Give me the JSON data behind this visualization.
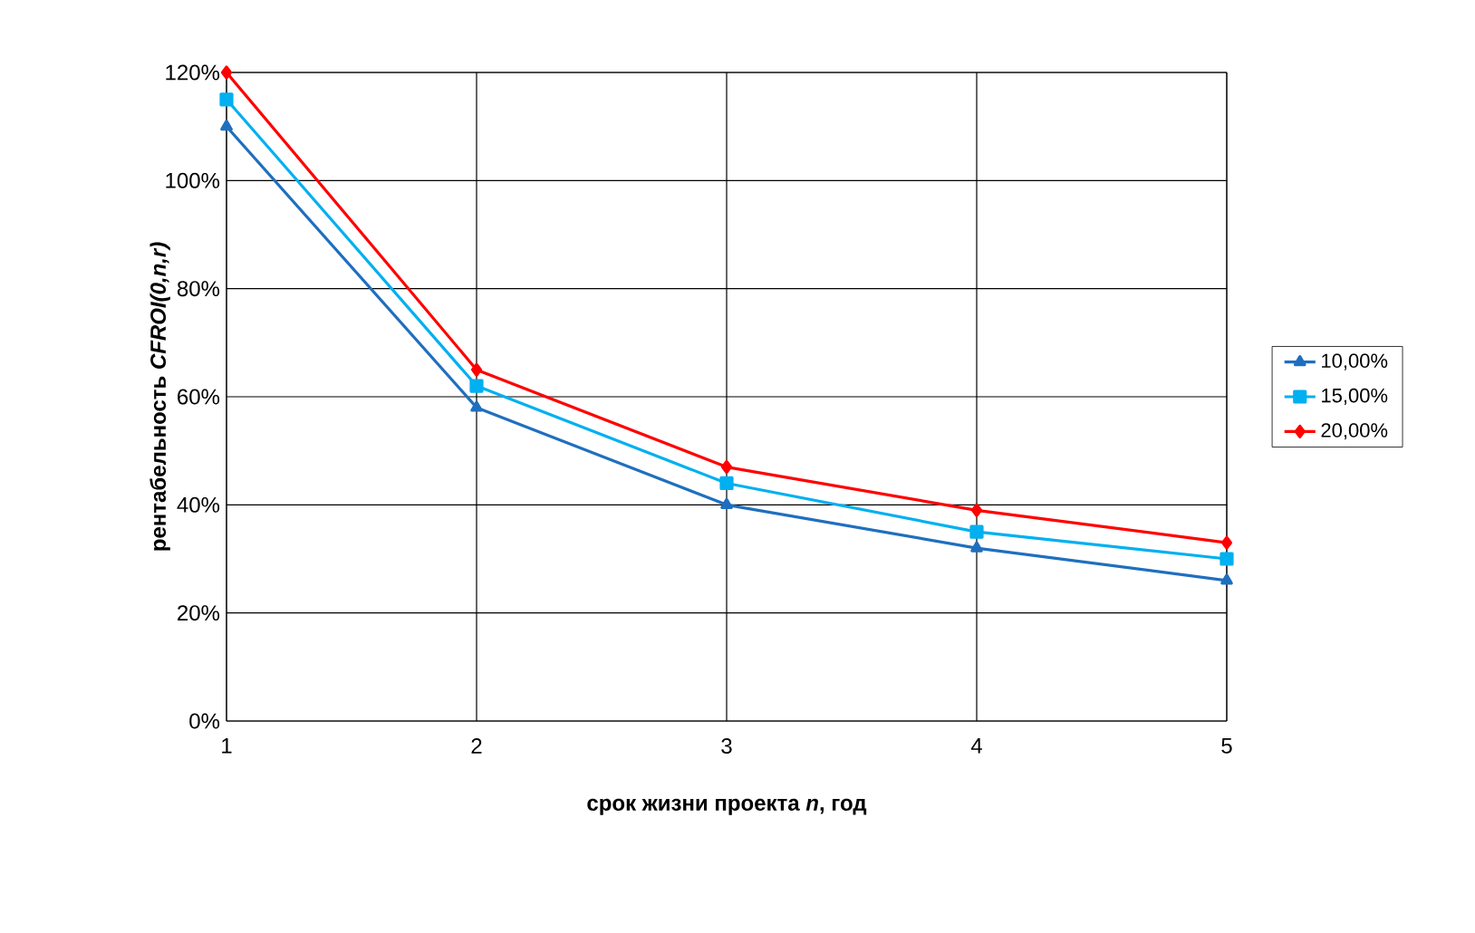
{
  "chart_data": {
    "type": "line",
    "xlabel": "срок жизни проекта *n*, год",
    "ylabel": "рентабельность  *CFROI(0,n,r)*",
    "x": [
      1,
      2,
      3,
      4,
      5
    ],
    "series": [
      {
        "name": "10,00%",
        "color": "#1f6fbf",
        "marker": "triangle",
        "values": [
          110,
          58,
          40,
          32,
          26
        ]
      },
      {
        "name": "15,00%",
        "color": "#00b0f0",
        "marker": "square",
        "values": [
          115,
          62,
          44,
          35,
          30
        ]
      },
      {
        "name": "20,00%",
        "color": "#ff0000",
        "marker": "diamond",
        "values": [
          120,
          65,
          47,
          39,
          33
        ]
      }
    ],
    "xlim": [
      1,
      5
    ],
    "xticks": [
      1,
      2,
      3,
      4,
      5
    ],
    "ylim": [
      0,
      120
    ],
    "yticks": [
      {
        "value": 0,
        "label": "0%"
      },
      {
        "value": 20,
        "label": "20%"
      },
      {
        "value": 40,
        "label": "40%"
      },
      {
        "value": 60,
        "label": "60%"
      },
      {
        "value": 80,
        "label": "80%"
      },
      {
        "value": 100,
        "label": "100%"
      },
      {
        "value": 120,
        "label": "120%"
      }
    ],
    "grid": true,
    "legend": "right",
    "line_style": "solid"
  }
}
